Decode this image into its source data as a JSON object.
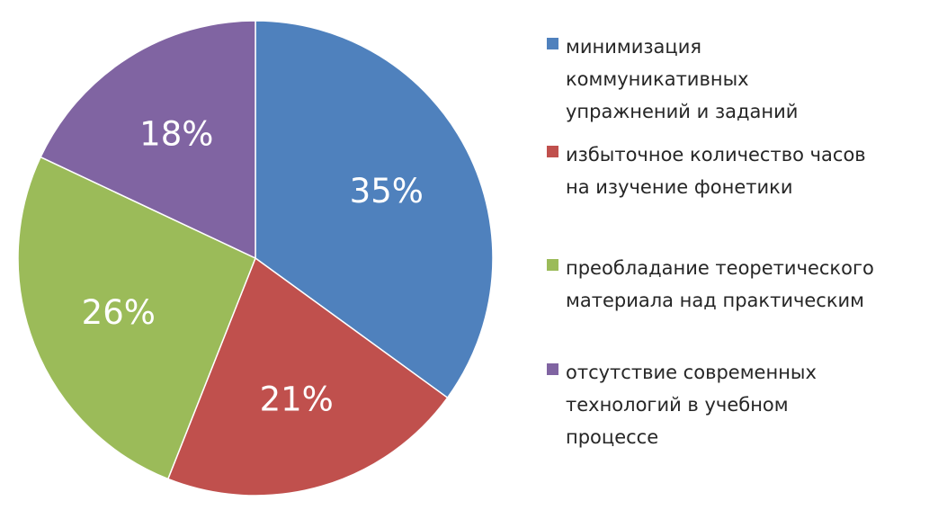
{
  "chart_data": {
    "type": "pie",
    "title": "",
    "start_angle_deg": 0,
    "direction": "clockwise",
    "slices": [
      {
        "label": "минимизация коммуникативных упражнений и заданий",
        "value": 35,
        "display": "35%",
        "color": "#4f81bd"
      },
      {
        "label": "избыточное количество часов на изучение фонетики",
        "value": 21,
        "display": "21%",
        "color": "#c0504d"
      },
      {
        "label": "преобладание теоретического материала над практическим",
        "value": 26,
        "display": "26%",
        "color": "#9bbb59"
      },
      {
        "label": "отсутствие современных технологий в учебном процессе",
        "value": 18,
        "display": "18%",
        "color": "#8064a2"
      }
    ],
    "legend": {
      "placement": "right",
      "entries": [
        "минимизация\nкоммуникативных\nупражнений и заданий",
        "избыточное количество часов\nна изучение фонетики",
        "преобладание теоретического\nматериала над практическим",
        "отсутствие современных\nтехнологий в учебном\nпроцессе"
      ]
    }
  }
}
